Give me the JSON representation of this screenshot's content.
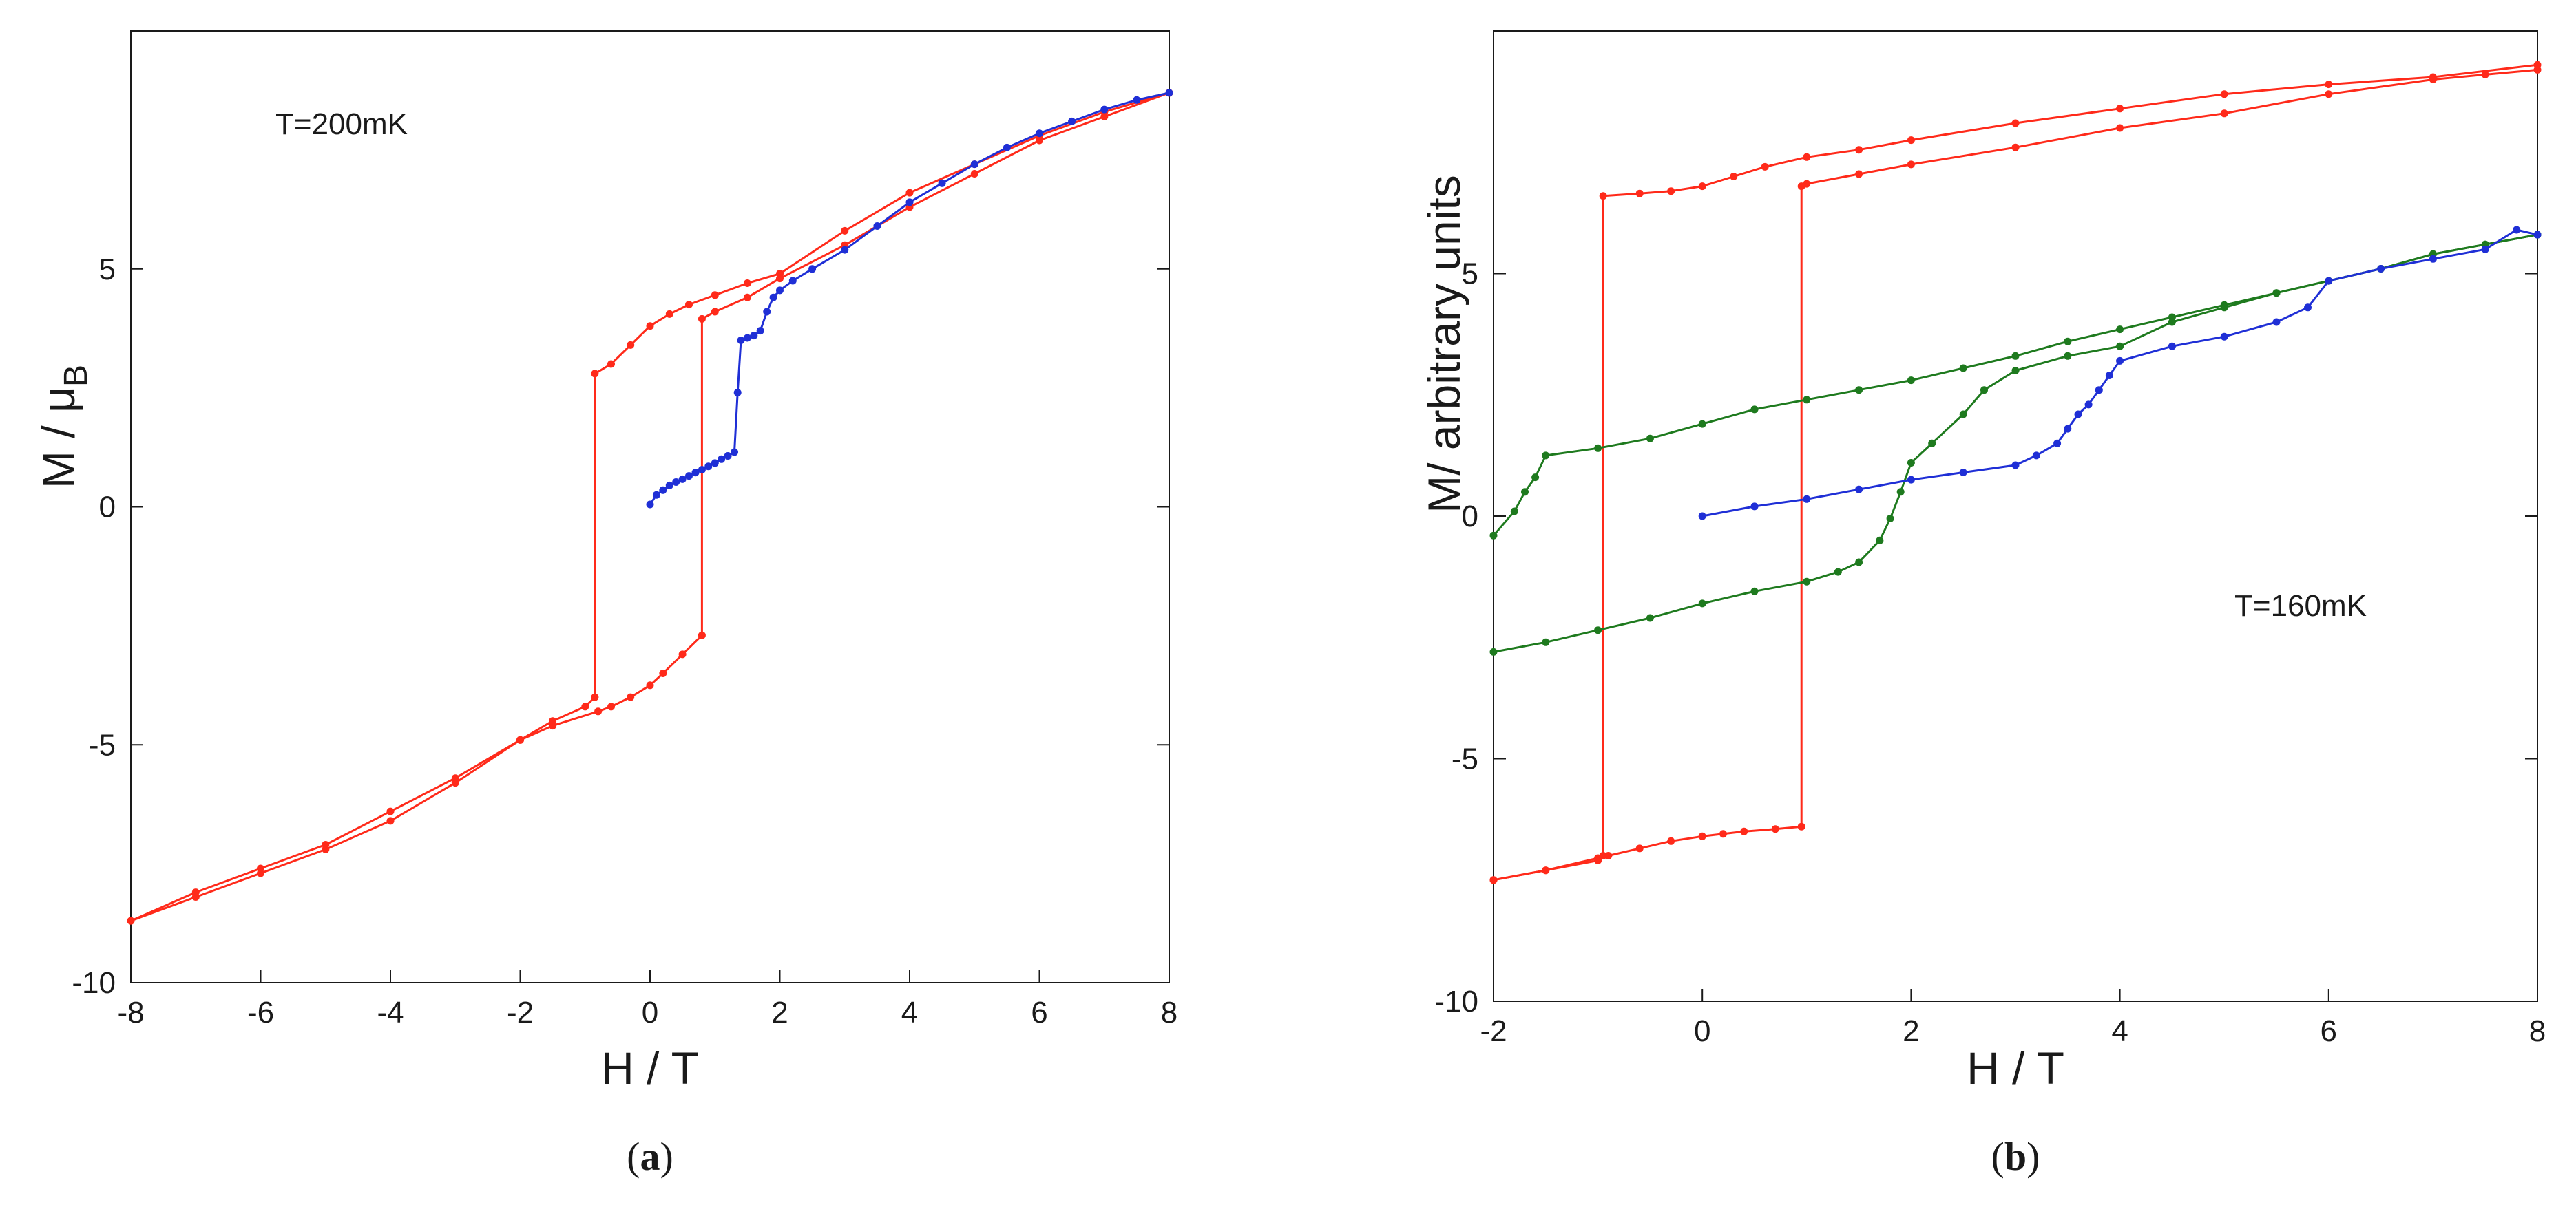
{
  "chart_data": [
    {
      "type": "line",
      "panel_label": "a",
      "annotation": "T=200mK",
      "xlabel": "H / T",
      "ylabel_main": "M / μ",
      "ylabel_sub": "B",
      "xlim": [
        -8,
        8
      ],
      "ylim": [
        -10,
        10
      ],
      "xticks": [
        -8,
        -6,
        -4,
        -2,
        0,
        2,
        4,
        6,
        8
      ],
      "yticks": [
        -10,
        -5,
        0,
        5
      ],
      "xtick_labels": [
        "-8",
        "-6",
        "-4",
        "-2",
        "0",
        "2",
        "4",
        "6",
        "8"
      ],
      "ytick_labels": [
        "-10",
        "-5",
        "0",
        "5"
      ],
      "grid": false,
      "series": [
        {
          "color": "#ff2a1a",
          "x": [
            8,
            7,
            6,
            5,
            4,
            3,
            2,
            1.5,
            1.0,
            0.8,
            0.8,
            0.5,
            0.2,
            0,
            -0.3,
            -0.6,
            -0.8,
            -1.5,
            -2,
            -3,
            -4,
            -5,
            -6,
            -7,
            -8
          ],
          "y": [
            8.7,
            8.2,
            7.7,
            7.0,
            6.3,
            5.5,
            4.8,
            4.4,
            4.1,
            3.95,
            -2.7,
            -3.1,
            -3.5,
            -3.75,
            -4.0,
            -4.2,
            -4.3,
            -4.6,
            -4.9,
            -5.7,
            -6.4,
            -7.1,
            -7.6,
            -8.1,
            -8.7
          ]
        },
        {
          "color": "#ff2a1a",
          "x": [
            -8,
            -7,
            -6,
            -5,
            -4,
            -3,
            -2,
            -1.5,
            -1.0,
            -0.85,
            -0.85,
            -0.6,
            -0.3,
            0,
            0.3,
            0.6,
            1.0,
            1.5,
            2,
            3,
            4,
            5,
            6,
            7,
            8
          ],
          "y": [
            -8.7,
            -8.2,
            -7.7,
            -7.2,
            -6.6,
            -5.8,
            -4.9,
            -4.5,
            -4.2,
            -4.0,
            2.8,
            3.0,
            3.4,
            3.8,
            4.05,
            4.25,
            4.45,
            4.7,
            4.9,
            5.8,
            6.6,
            7.2,
            7.8,
            8.3,
            8.7
          ]
        },
        {
          "color": "#1f2fd6",
          "x": [
            0,
            0.1,
            0.2,
            0.3,
            0.4,
            0.5,
            0.6,
            0.7,
            0.8,
            0.9,
            1.0,
            1.1,
            1.2,
            1.3,
            1.35,
            1.4,
            1.5,
            1.6,
            1.7,
            1.8,
            1.9,
            2.0,
            2.2,
            2.5,
            3,
            3.5,
            4,
            4.5,
            5,
            5.5,
            6,
            6.5,
            7,
            7.5,
            8
          ],
          "y": [
            0.05,
            0.25,
            0.35,
            0.45,
            0.52,
            0.58,
            0.65,
            0.72,
            0.78,
            0.85,
            0.92,
            1.0,
            1.07,
            1.15,
            2.4,
            3.5,
            3.55,
            3.6,
            3.7,
            4.1,
            4.4,
            4.55,
            4.75,
            5.0,
            5.4,
            5.9,
            6.4,
            6.8,
            7.2,
            7.55,
            7.85,
            8.1,
            8.35,
            8.55,
            8.7
          ]
        }
      ]
    },
    {
      "type": "line",
      "panel_label": "b",
      "annotation": "T=160mK",
      "xlabel": "H / T",
      "ylabel": "M/ arbitrary units",
      "xlim": [
        -2,
        8
      ],
      "ylim": [
        -10,
        10
      ],
      "xticks": [
        -2,
        0,
        2,
        4,
        6,
        8
      ],
      "yticks": [
        -10,
        -5,
        0,
        5
      ],
      "xtick_labels": [
        "-2",
        "0",
        "2",
        "4",
        "6",
        "8"
      ],
      "ytick_labels": [
        "-10",
        "-5",
        "0",
        "5"
      ],
      "grid": false,
      "series": [
        {
          "color": "#ff2a1a",
          "x": [
            8,
            7.5,
            7,
            6,
            5,
            4,
            3,
            2,
            1.5,
            1.0,
            0.95,
            0.95,
            0.7,
            0.4,
            0.2,
            0,
            -0.3,
            -0.6,
            -0.9,
            -1.0,
            -1.5,
            -2
          ],
          "y": [
            9.2,
            9.1,
            9.0,
            8.7,
            8.3,
            8.0,
            7.6,
            7.25,
            7.05,
            6.85,
            6.8,
            -6.4,
            -6.45,
            -6.5,
            -6.55,
            -6.6,
            -6.7,
            -6.85,
            -7.0,
            -7.05,
            -7.3,
            -7.5
          ]
        },
        {
          "color": "#ff2a1a",
          "x": [
            -2,
            -1.5,
            -1.0,
            -0.95,
            -0.95,
            -0.6,
            -0.3,
            0,
            0.3,
            0.6,
            1.0,
            1.5,
            2,
            3,
            4,
            5,
            6,
            7,
            8
          ],
          "y": [
            -7.5,
            -7.3,
            -7.1,
            -7.0,
            6.6,
            6.65,
            6.7,
            6.8,
            7.0,
            7.2,
            7.4,
            7.55,
            7.75,
            8.1,
            8.4,
            8.7,
            8.9,
            9.05,
            9.3
          ]
        },
        {
          "color": "#1e7a1e",
          "x": [
            8,
            7.5,
            7,
            6.5,
            6,
            5.5,
            5,
            4.5,
            4,
            3.5,
            3,
            2.5,
            2,
            1.5,
            1,
            0.5,
            0,
            -0.5,
            -1,
            -1.5,
            -1.6,
            -1.7,
            -1.8,
            -2
          ],
          "y": [
            5.8,
            5.6,
            5.4,
            5.1,
            4.85,
            4.6,
            4.35,
            4.1,
            3.85,
            3.6,
            3.3,
            3.05,
            2.8,
            2.6,
            2.4,
            2.2,
            1.9,
            1.6,
            1.4,
            1.25,
            0.8,
            0.5,
            0.1,
            -0.4
          ]
        },
        {
          "color": "#1e7a1e",
          "x": [
            -2,
            -1.5,
            -1,
            -0.5,
            0,
            0.5,
            1,
            1.3,
            1.5,
            1.7,
            1.8,
            1.9,
            2,
            2.2,
            2.5,
            2.7,
            3,
            3.5,
            4,
            4.5,
            5,
            5.5,
            6,
            6.5,
            7,
            7.5,
            8
          ],
          "y": [
            -2.8,
            -2.6,
            -2.35,
            -2.1,
            -1.8,
            -1.55,
            -1.35,
            -1.15,
            -0.95,
            -0.5,
            -0.05,
            0.5,
            1.1,
            1.5,
            2.1,
            2.6,
            3.0,
            3.3,
            3.5,
            4.0,
            4.3,
            4.6,
            4.85,
            5.1,
            5.4,
            5.6,
            5.8
          ]
        },
        {
          "color": "#1f2fd6",
          "x": [
            0,
            0.5,
            1,
            1.5,
            2,
            2.5,
            3,
            3.2,
            3.4,
            3.5,
            3.6,
            3.7,
            3.8,
            3.9,
            4,
            4.5,
            5,
            5.5,
            5.8,
            6,
            6.5,
            7,
            7.5,
            7.8,
            8
          ],
          "y": [
            0,
            0.2,
            0.35,
            0.55,
            0.75,
            0.9,
            1.05,
            1.25,
            1.5,
            1.8,
            2.1,
            2.3,
            2.6,
            2.9,
            3.2,
            3.5,
            3.7,
            4.0,
            4.3,
            4.85,
            5.1,
            5.3,
            5.5,
            5.9,
            5.8
          ]
        }
      ]
    }
  ]
}
